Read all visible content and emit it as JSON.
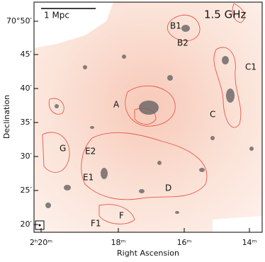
{
  "image": {
    "title": "1.5 GHz",
    "scale_bar": "1 Mpc",
    "x_axis": {
      "label": "Right Ascension",
      "ticks": [
        "2ʰ20ᵐ",
        "18ᵐ",
        "16ᵐ",
        "14ᵐ"
      ]
    },
    "y_axis": {
      "label": "Declination",
      "ticks": [
        "70°50′",
        "45′",
        "40′",
        "35′",
        "30′",
        "25′",
        "20′"
      ]
    },
    "regions": [
      "A",
      "B1",
      "B2",
      "C1",
      "C",
      "D",
      "E1",
      "E2",
      "F",
      "F1",
      "G"
    ]
  }
}
